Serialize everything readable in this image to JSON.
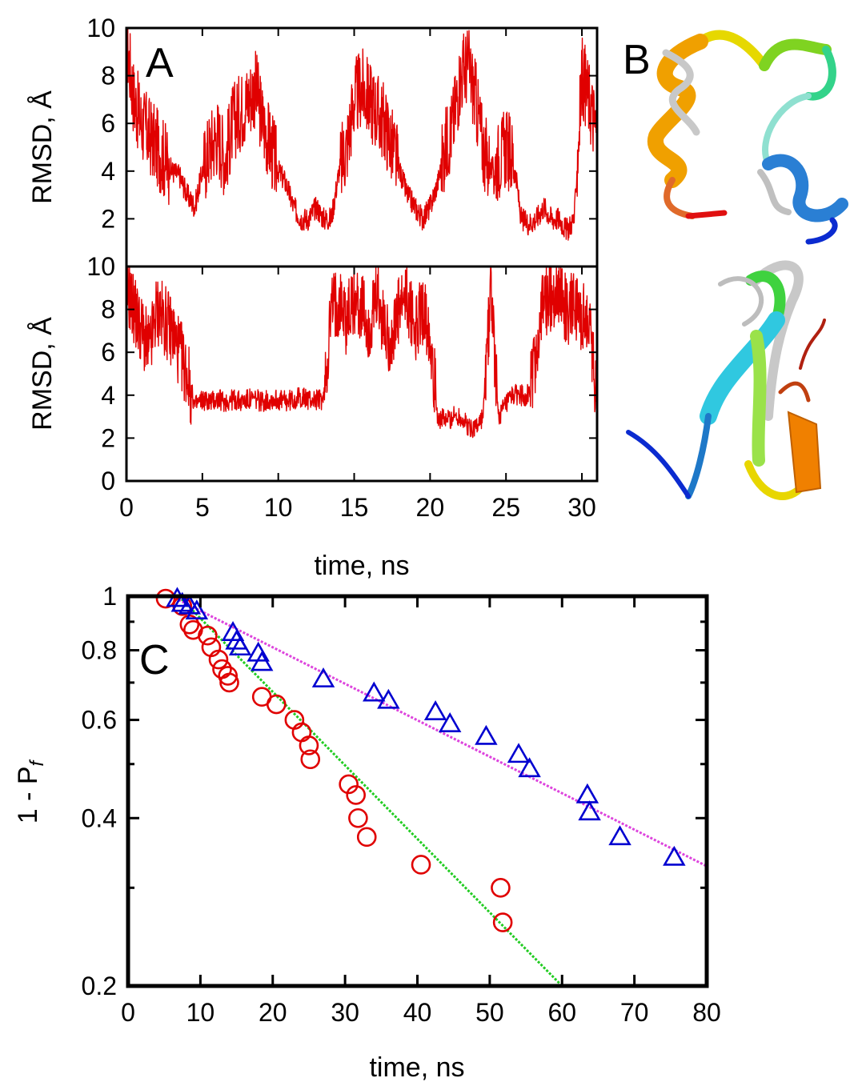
{
  "panels": {
    "A": {
      "label": "A"
    },
    "B": {
      "label": "B"
    },
    "C": {
      "label": "C"
    }
  },
  "chart_data": [
    {
      "id": "A-top",
      "type": "line",
      "ylabel": "RMSD, Å",
      "xlim": [
        0,
        31
      ],
      "ylim": [
        0,
        10
      ],
      "yticks": [
        "2",
        "4",
        "6",
        "8",
        "10"
      ],
      "grid": false,
      "series_color": "#e00000",
      "x": [
        0,
        0.5,
        1,
        1.5,
        2,
        2.5,
        3,
        3.5,
        4,
        4.5,
        5,
        5.5,
        6,
        6.5,
        7,
        7.5,
        8,
        8.5,
        9,
        9.5,
        10,
        10.5,
        11,
        11.5,
        12,
        12.5,
        13,
        13.5,
        14,
        14.5,
        15,
        15.5,
        16,
        16.5,
        17,
        17.5,
        18,
        18.5,
        19,
        19.5,
        20,
        20.5,
        21,
        21.5,
        22,
        22.5,
        23,
        23.5,
        24,
        24.5,
        25,
        25.5,
        26,
        26.5,
        27,
        27.5,
        28,
        28.5,
        29,
        29.5,
        30,
        30.5,
        31
      ],
      "values": [
        9.5,
        7,
        6,
        5.5,
        5,
        4.5,
        4,
        3.8,
        3,
        2.5,
        4,
        5,
        5.5,
        4.5,
        6,
        6.5,
        7,
        7.5,
        6,
        5,
        4,
        3.5,
        2.5,
        2,
        2,
        2.5,
        2,
        2,
        4,
        5,
        7,
        7.5,
        7,
        6.5,
        6,
        5,
        4,
        3,
        2.5,
        2,
        2.5,
        3.5,
        5,
        6,
        8,
        8.5,
        7,
        5,
        4,
        4.5,
        5,
        4.5,
        2,
        1.8,
        2,
        2.5,
        2,
        2,
        1.5,
        2,
        8,
        7,
        5.5
      ]
    },
    {
      "id": "A-bottom",
      "type": "line",
      "ylabel": "RMSD, Å",
      "xlabel": "time, ns",
      "xlim": [
        0,
        31
      ],
      "ylim": [
        0,
        10
      ],
      "xticks": [
        "0",
        "5",
        "10",
        "15",
        "20",
        "25",
        "30"
      ],
      "yticks": [
        "0",
        "2",
        "4",
        "6",
        "8",
        "10"
      ],
      "grid": false,
      "series_color": "#e00000",
      "x": [
        0,
        0.5,
        1,
        1.5,
        2,
        2.5,
        3,
        3.5,
        4,
        4.5,
        5,
        5.5,
        6,
        6.5,
        7,
        7.5,
        8,
        8.5,
        9,
        9.5,
        10,
        10.5,
        11,
        11.5,
        12,
        12.5,
        13,
        13.5,
        14,
        14.5,
        15,
        15.5,
        16,
        16.5,
        17,
        17.5,
        18,
        18.5,
        19,
        19.5,
        20,
        20.5,
        21,
        21.5,
        22,
        22.5,
        23,
        23.5,
        24,
        24.5,
        25,
        25.5,
        26,
        26.5,
        27,
        27.5,
        28,
        28.5,
        29,
        29.5,
        30,
        30.5,
        31
      ],
      "values": [
        9,
        8,
        7,
        6,
        8,
        7.5,
        7,
        6,
        5,
        3.5,
        3.8,
        3.7,
        3.8,
        3.7,
        3.8,
        3.7,
        3.8,
        3.8,
        3.7,
        3.8,
        3.8,
        3.7,
        3.8,
        3.9,
        3.8,
        3.8,
        3.8,
        8,
        8.5,
        7.5,
        8.5,
        8,
        7,
        8.5,
        7,
        6.5,
        8,
        8.5,
        7,
        8,
        7,
        3,
        2.8,
        3,
        3,
        2.5,
        2.5,
        3,
        9,
        3,
        3.5,
        4,
        4,
        4,
        6,
        8.5,
        8.5,
        9,
        8,
        8,
        7.5,
        7.5,
        3.5
      ]
    },
    {
      "id": "C",
      "type": "scatter",
      "ylabel": "1 - P",
      "ylabel_sub": "f",
      "xlabel": "time, ns",
      "xlim": [
        0,
        80
      ],
      "ylim": [
        0.2,
        1
      ],
      "yscale": "log",
      "xticks": [
        "0",
        "10",
        "20",
        "30",
        "40",
        "50",
        "60",
        "70",
        "80"
      ],
      "yticks": [
        {
          "value": 0.2,
          "label": "0.2"
        },
        {
          "value": 0.4,
          "label": "0.4"
        },
        {
          "value": 0.6,
          "label": "0.6"
        },
        {
          "value": 0.8,
          "label": "0.8"
        },
        {
          "value": 1.0,
          "label": "1"
        }
      ],
      "minor_yticks": [
        0.3,
        0.5,
        0.7,
        0.9
      ],
      "grid": false,
      "series": [
        {
          "marker": "circle",
          "color": "#e00000",
          "points": [
            [
              5.2,
              0.99
            ],
            [
              7.5,
              0.96
            ],
            [
              8.5,
              0.89
            ],
            [
              9,
              0.87
            ],
            [
              11,
              0.85
            ],
            [
              11.5,
              0.81
            ],
            [
              12.5,
              0.77
            ],
            [
              13,
              0.74
            ],
            [
              13.8,
              0.72
            ],
            [
              14,
              0.7
            ],
            [
              18.5,
              0.66
            ],
            [
              20.5,
              0.64
            ],
            [
              23,
              0.6
            ],
            [
              24,
              0.57
            ],
            [
              25,
              0.54
            ],
            [
              25.2,
              0.51
            ],
            [
              30.5,
              0.46
            ],
            [
              31.5,
              0.44
            ],
            [
              31.8,
              0.4
            ],
            [
              33,
              0.37
            ],
            [
              40.5,
              0.33
            ],
            [
              51.5,
              0.3
            ],
            [
              51.8,
              0.26
            ]
          ]
        },
        {
          "marker": "triangle",
          "color": "#0000d0",
          "points": [
            [
              6.8,
              0.99
            ],
            [
              7.5,
              0.97
            ],
            [
              8.5,
              0.96
            ],
            [
              9.5,
              0.94
            ],
            [
              14.5,
              0.86
            ],
            [
              15,
              0.83
            ],
            [
              15.5,
              0.81
            ],
            [
              18,
              0.79
            ],
            [
              18.5,
              0.76
            ],
            [
              27,
              0.71
            ],
            [
              34,
              0.67
            ],
            [
              36,
              0.65
            ],
            [
              42.5,
              0.62
            ],
            [
              44.5,
              0.59
            ],
            [
              49.5,
              0.56
            ],
            [
              54,
              0.52
            ],
            [
              55.5,
              0.49
            ],
            [
              63.5,
              0.44
            ],
            [
              63.8,
              0.41
            ],
            [
              68,
              0.37
            ],
            [
              75.5,
              0.34
            ]
          ]
        }
      ],
      "fits": [
        {
          "color": "#22cc22",
          "style": "dotted",
          "points": [
            [
              7,
              1.0
            ],
            [
              60,
              0.2
            ]
          ]
        },
        {
          "color": "#dd44dd",
          "style": "dotted",
          "points": [
            [
              6,
              1.0
            ],
            [
              80,
              0.328
            ]
          ]
        }
      ]
    }
  ]
}
